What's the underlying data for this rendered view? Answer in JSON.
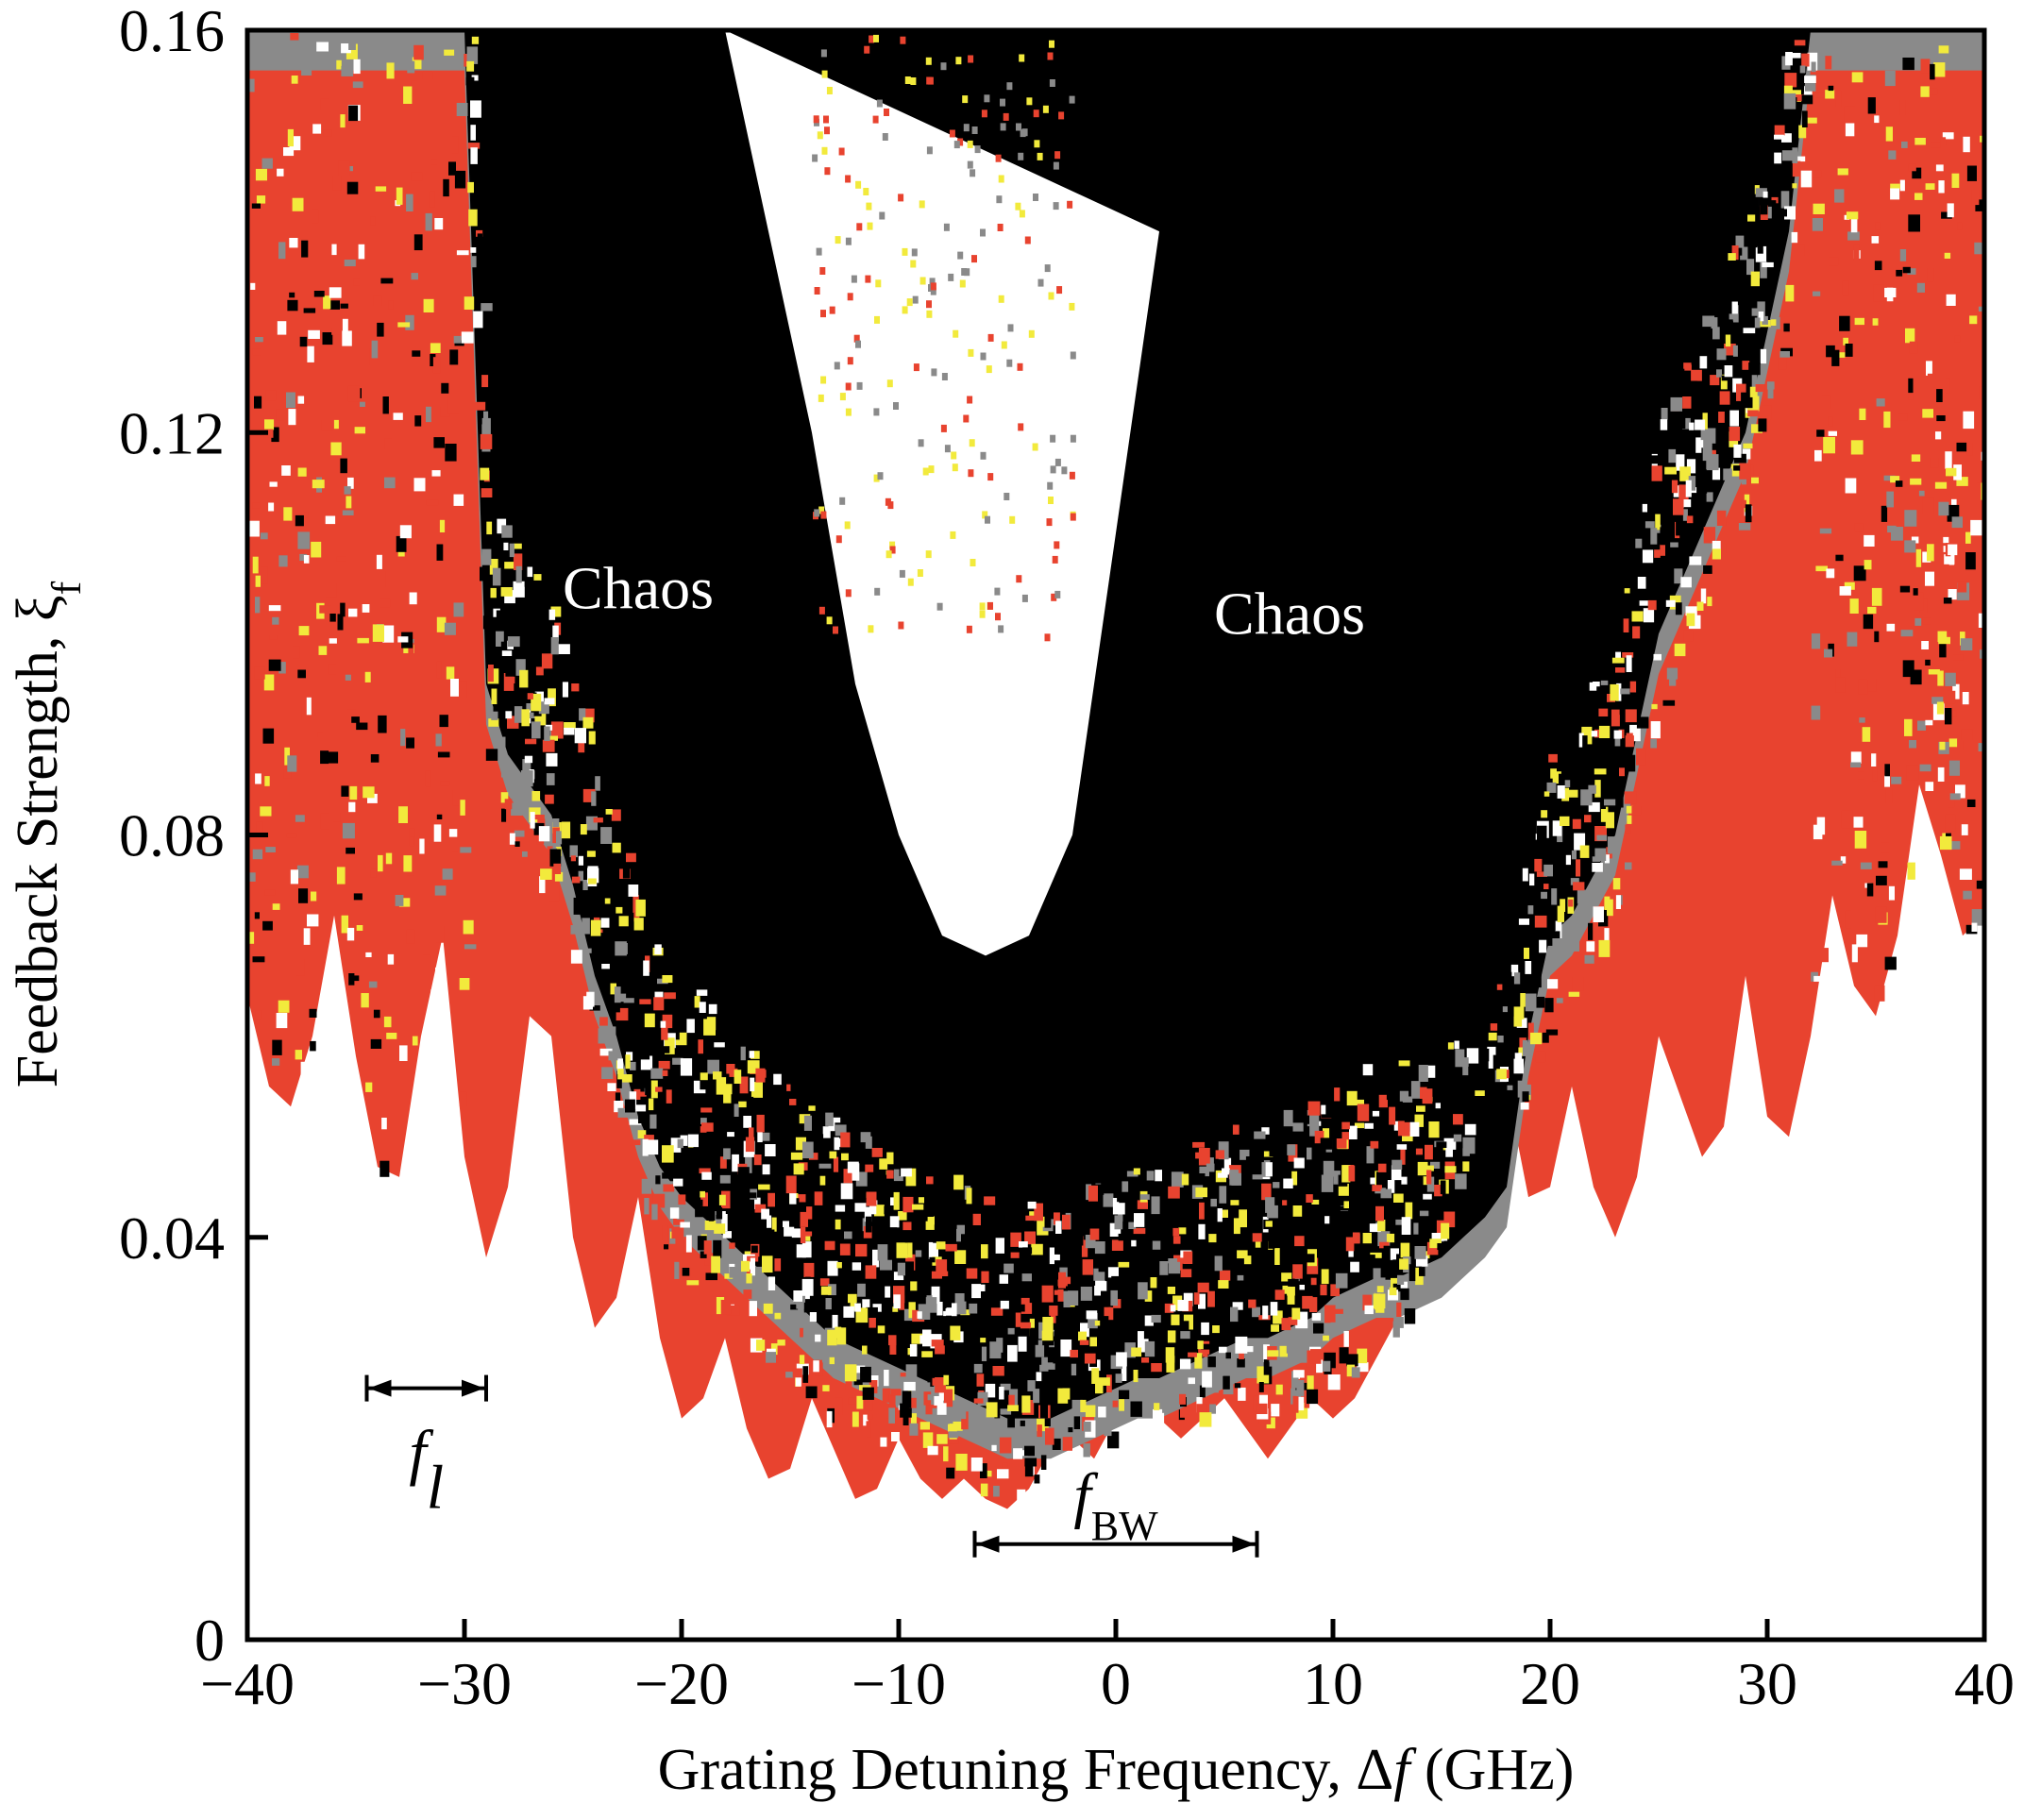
{
  "chart_data": {
    "type": "heatmap",
    "title": "",
    "xlabel_parts": [
      "Grating Detuning Frequency, Δ",
      "f",
      " (GHz)"
    ],
    "ylabel_parts": [
      "Feedback Strength, ξ",
      "f"
    ],
    "xlim": [
      -40,
      40
    ],
    "ylim": [
      0,
      0.16
    ],
    "xticks": [
      -40,
      -30,
      -20,
      -10,
      0,
      10,
      20,
      30,
      40
    ],
    "xtick_labels": [
      "−40",
      "−30",
      "−20",
      "−10",
      "0",
      "10",
      "20",
      "30",
      "40"
    ],
    "yticks": [
      0,
      0.04,
      0.08,
      0.12,
      0.16
    ],
    "ytick_labels": [
      "0",
      "0.04",
      "0.08",
      "0.12",
      "0.16"
    ],
    "grid": false,
    "legend": "none",
    "colors": {
      "red": "#e8432f",
      "black": "#000000",
      "gray": "#8a8a8a",
      "yellow": "#f2ea3c",
      "white": "#ffffff"
    },
    "boundaries": {
      "x": [
        -40,
        -39,
        -38,
        -37,
        -36,
        -35,
        -34,
        -33,
        -32,
        -31,
        -30,
        -29,
        -28,
        -27,
        -26,
        -25,
        -24,
        -23,
        -22,
        -21,
        -20,
        -19,
        -18,
        -17,
        -16,
        -15,
        -14,
        -13,
        -12,
        -11,
        -10,
        -9,
        -8,
        -7,
        -6,
        -5,
        -4,
        -3,
        -2,
        -1,
        0,
        1,
        2,
        3,
        4,
        5,
        6,
        7,
        8,
        9,
        10,
        11,
        12,
        13,
        14,
        15,
        16,
        17,
        18,
        19,
        20,
        21,
        22,
        23,
        24,
        25,
        26,
        27,
        28,
        29,
        30,
        31,
        32,
        33,
        34,
        35,
        36,
        37,
        38,
        39,
        40
      ],
      "red_onset": [
        0.064,
        0.055,
        0.053,
        0.06,
        0.072,
        0.058,
        0.047,
        0.046,
        0.06,
        0.07,
        0.048,
        0.038,
        0.045,
        0.062,
        0.06,
        0.04,
        0.031,
        0.034,
        0.044,
        0.03,
        0.022,
        0.024,
        0.03,
        0.021,
        0.016,
        0.017,
        0.024,
        0.019,
        0.014,
        0.015,
        0.02,
        0.016,
        0.014,
        0.016,
        0.014,
        0.013,
        0.015,
        0.019,
        0.02,
        0.018,
        0.022,
        0.024,
        0.022,
        0.02,
        0.022,
        0.024,
        0.021,
        0.018,
        0.021,
        0.024,
        0.022,
        0.024,
        0.028,
        0.032,
        0.035,
        0.04,
        0.047,
        0.058,
        0.055,
        0.044,
        0.045,
        0.055,
        0.045,
        0.04,
        0.046,
        0.06,
        0.054,
        0.048,
        0.051,
        0.066,
        0.052,
        0.05,
        0.06,
        0.074,
        0.065,
        0.062,
        0.07,
        0.085,
        0.078,
        0.07,
        0.072
      ],
      "black_onset": [
        0.16,
        0.16,
        0.16,
        0.16,
        0.16,
        0.16,
        0.16,
        0.16,
        0.16,
        0.16,
        0.16,
        0.095,
        0.088,
        0.085,
        0.082,
        0.075,
        0.066,
        0.06,
        0.052,
        0.047,
        0.044,
        0.042,
        0.04,
        0.038,
        0.036,
        0.034,
        0.032,
        0.03,
        0.029,
        0.028,
        0.027,
        0.026,
        0.025,
        0.024,
        0.023,
        0.022,
        0.022,
        0.022,
        0.023,
        0.024,
        0.025,
        0.026,
        0.026,
        0.027,
        0.028,
        0.029,
        0.03,
        0.03,
        0.031,
        0.032,
        0.034,
        0.035,
        0.036,
        0.036,
        0.037,
        0.038,
        0.04,
        0.042,
        0.045,
        0.06,
        0.07,
        0.072,
        0.076,
        0.08,
        0.09,
        0.1,
        0.105,
        0.11,
        0.115,
        0.12,
        0.13,
        0.14,
        0.16,
        0.16,
        0.16,
        0.16,
        0.16,
        0.16,
        0.16,
        0.16,
        0.16
      ],
      "white_center": {
        "x_range": [
          -18,
          2
        ],
        "bottom": [
          0.16,
          0.14,
          0.12,
          0.095,
          0.08,
          0.07,
          0.068,
          0.07,
          0.08,
          0.11,
          0.14
        ]
      }
    },
    "annotations": [
      {
        "text": "Chaos",
        "x": -22,
        "y": 0.1025
      },
      {
        "text": "Chaos",
        "x": 8,
        "y": 0.1
      }
    ],
    "measures": [
      {
        "symbol": "f",
        "subscript": "l",
        "x_from": -34.5,
        "x_to": -29,
        "y": 0.025
      },
      {
        "symbol": "f",
        "subscript": "BW",
        "x_from": -6.5,
        "x_to": 6.5,
        "y": 0.0095
      }
    ]
  }
}
